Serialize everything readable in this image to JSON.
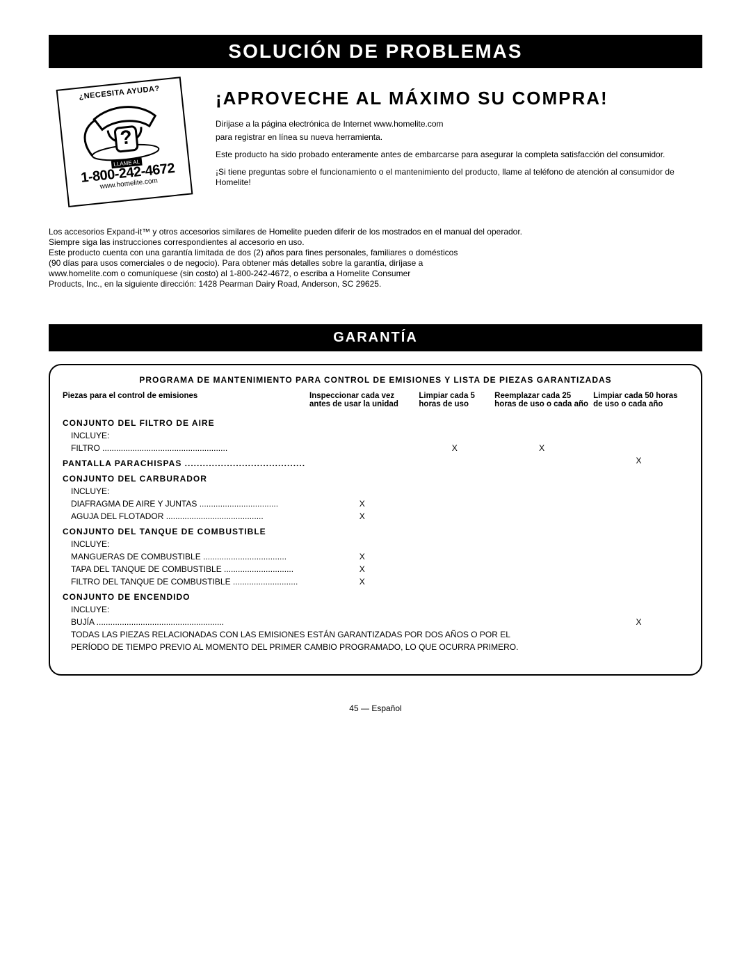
{
  "header": {
    "title": "SOLUCIÓN DE PROBLEMAS"
  },
  "phone_card": {
    "help_text": "¿NECESITA AYUDA?",
    "call_label": "LLAME AL",
    "number": "1-800-242-4672",
    "url": "www.homelite.com"
  },
  "hero": {
    "headline": "¡APROVECHE AL MÁXIMO SU COMPRA!",
    "p1": "Dirijase a la página electrónica de Internet www.homelite.com",
    "p2": "para registrar en línea su nueva herramienta.",
    "p3": "Este producto ha sido probado enteramente antes de embarcarse para asegurar la completa satisfacción del consumidor.",
    "p4": "¡Si tiene preguntas sobre el funcionamiento o el mantenimiento del producto, llame al teléfono de atención al consumidor de Homelite!"
  },
  "body": {
    "line1": "Los accesorios Expand-it™ y otros accesorios similares de Homelite pueden diferir de los mostrados en el manual del operador.",
    "line2": "Siempre siga las instrucciones correspondientes al accesorio en uso.",
    "line3": "Este producto cuenta con una garantía limitada de dos (2) años para fines personales, familiares o domésticos",
    "line4": "(90 días para usos comerciales o de negocio). Para obtener más detalles sobre la garantía, diríjase a",
    "line5": "www.homelite.com o comuníquese (sin costo) al 1-800-242-4672, o escriba a Homelite Consumer",
    "line6": "Products, Inc., en la siguiente dirección: 1428 Pearman Dairy Road, Anderson, SC 29625."
  },
  "warranty_bar": "GARANTÍA",
  "maint": {
    "title": "PROGRAMA DE MANTENIMIENTO PARA CONTROL DE EMISIONES Y LISTA DE PIEZAS GARANTIZADAS",
    "col1": "Piezas para el control de emisiones",
    "col2": "Inspeccionar cada vez antes de usar la unidad",
    "col3": "Limpiar cada 5 horas de uso",
    "col4": "Reemplazar cada 25 horas de uso o cada año",
    "col5": "Limpiar cada 50 horas de uso o cada año",
    "sections": [
      {
        "header": "CONJUNTO DEL FILTRO DE AIRE",
        "rows": [
          {
            "label": "INCLUYE:"
          },
          {
            "label": "FILTRO",
            "c3": "X",
            "c4": "X"
          }
        ]
      },
      {
        "header_plain": "PANTALLA PARACHISPAS",
        "rows": [
          {
            "label": "",
            "c5": "X"
          }
        ]
      },
      {
        "header": "CONJUNTO DEL CARBURADOR",
        "rows": [
          {
            "label": "INCLUYE:"
          },
          {
            "label": "DIAFRAGMA DE AIRE Y JUNTAS",
            "c2": "X"
          },
          {
            "label": "AGUJA DEL FLOTADOR",
            "c2": "X"
          }
        ]
      },
      {
        "header": "CONJUNTO DEL TANQUE DE COMBUSTIBLE",
        "rows": [
          {
            "label": "INCLUYE:"
          },
          {
            "label": "MANGUERAS DE COMBUSTIBLE",
            "c2": "X"
          },
          {
            "label": "TAPA DEL TANQUE DE COMBUSTIBLE",
            "c2": "X"
          },
          {
            "label": "FILTRO DEL TANQUE DE COMBUSTIBLE",
            "c2": "X"
          }
        ]
      },
      {
        "header": "CONJUNTO DE ENCENDIDO",
        "rows": [
          {
            "label": "INCLUYE:"
          },
          {
            "label": "BUJÍA",
            "c5": "X"
          }
        ]
      }
    ],
    "footnote1": "TODAS LAS PIEZAS RELACIONADAS CON LAS EMISIONES ESTÁN GARANTIZADAS POR DOS AÑOS O POR EL",
    "footnote2": "PERÍODO DE TIEMPO PREVIO AL MOMENTO DEL PRIMER CAMBIO PROGRAMADO, LO QUE OCURRA PRIMERO."
  },
  "page_number": "45 — Español"
}
